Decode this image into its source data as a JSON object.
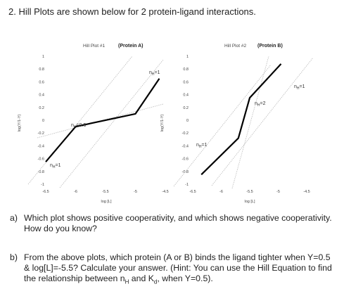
{
  "question2": "2.  Hill Plots are shown below for 2 protein-ligand interactions.",
  "plotA": {
    "title": "Hill Plot #1",
    "protein": "(Protein A)",
    "ylabel": "log(Y/1-Y)",
    "xlabel": "log [L]",
    "yticks": [
      "1",
      "0.8",
      "0.6",
      "0.4",
      "0.2",
      "0",
      "-0.2",
      "-0.4",
      "-0.6",
      "-0.8",
      "-1"
    ],
    "xticks": [
      "-6.5",
      "-6",
      "-5.5",
      "-5",
      "-4.5"
    ],
    "labels": {
      "top": {
        "n": "n",
        "sub": "H",
        "val": "=1"
      },
      "mid": {
        "n": "n",
        "sub": "H",
        "val": "=0.5"
      },
      "bottom": {
        "n": "n",
        "sub": "H",
        "val": "=1"
      }
    }
  },
  "plotB": {
    "title": "Hill Plot #2",
    "protein": "(Protein B)",
    "ylabel": "log(Y/1-Y)",
    "xlabel": "log [L]",
    "yticks": [
      "1",
      "0.8",
      "0.6",
      "0.4",
      "0.2",
      "0",
      "-0.2",
      "-0.4",
      "-0.6",
      "-0.8",
      "-1"
    ],
    "xticks": [
      "-6.5",
      "-6",
      "-5.5",
      "-5",
      "-4.5"
    ],
    "labels": {
      "top": {
        "n": "n",
        "sub": "H",
        "val": "=1"
      },
      "mid": {
        "n": "n",
        "sub": "H",
        "val": "=2"
      },
      "bottom": {
        "n": "n",
        "sub": "H",
        "val": "=1"
      }
    }
  },
  "chart_data": [
    {
      "type": "line",
      "title": "Hill Plot #1 (Protein A)",
      "xlabel": "log [L]",
      "ylabel": "log(Y/1-Y)",
      "xlim": [
        -6.5,
        -4.5
      ],
      "ylim": [
        -1,
        1
      ],
      "series": [
        {
          "name": "",
          "x": [
            -6.5,
            -6.0,
            -5.0,
            -4.6
          ],
          "y": [
            -0.65,
            -0.1,
            0.1,
            0.65
          ]
        }
      ],
      "annotations": [
        "nH=1",
        "nH=0.5",
        "nH=1"
      ]
    },
    {
      "type": "line",
      "title": "Hill Plot #2 (Protein B)",
      "xlabel": "log [L]",
      "ylabel": "log(Y/1-Y)",
      "xlim": [
        -6.5,
        -4.5
      ],
      "ylim": [
        -1,
        1
      ],
      "series": [
        {
          "name": "",
          "x": [
            -6.35,
            -5.7,
            -5.5,
            -4.95
          ],
          "y": [
            -0.85,
            -0.28,
            0.35,
            0.88
          ]
        }
      ],
      "annotations": [
        "nH=1",
        "nH=2",
        "nH=1"
      ]
    }
  ],
  "questionA": {
    "label": "a)",
    "text": "Which plot shows positive cooperativity, and which shows negative cooperativity. How do you know?"
  },
  "questionB": {
    "label": "b)",
    "text_pre": "From the above plots, which protein (A or B) binds the ligand tighter when Y=0.5 & log[L]=-5.5? Calculate your answer. (Hint: You can use the Hill Equation to find the relationship between n",
    "sub_h": "H",
    "text_mid": " and K",
    "sub_d": "d",
    "text_post": ", when Y=0.5)."
  }
}
